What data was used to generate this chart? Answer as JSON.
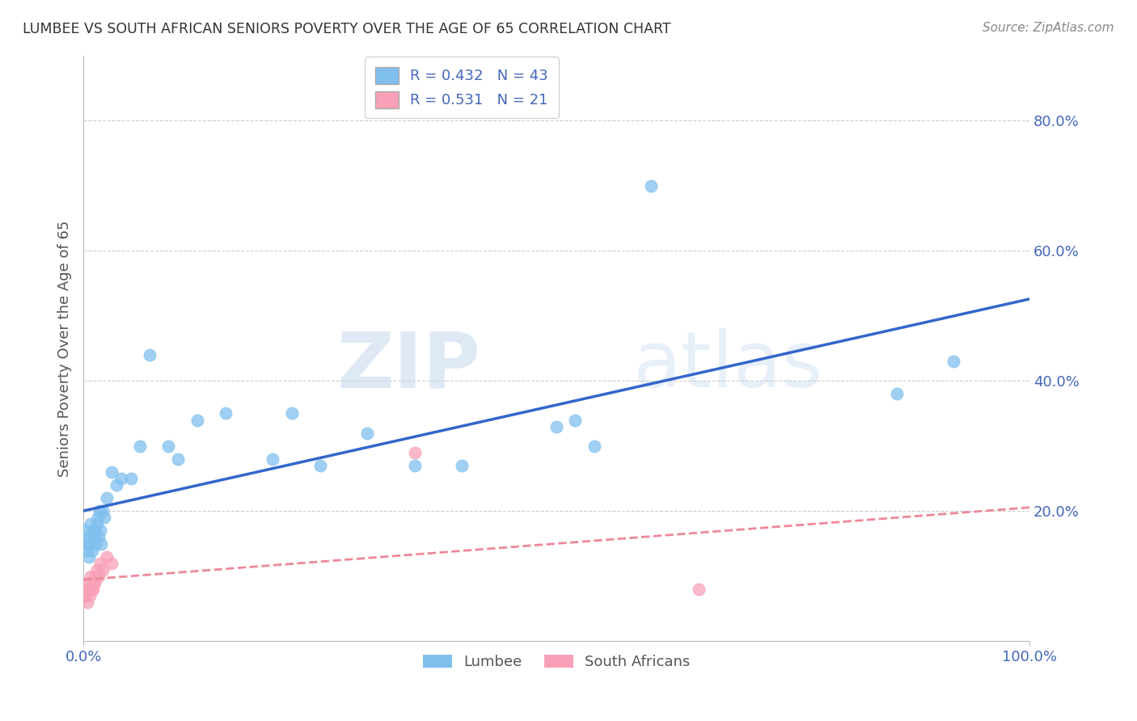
{
  "title": "LUMBEE VS SOUTH AFRICAN SENIORS POVERTY OVER THE AGE OF 65 CORRELATION CHART",
  "source": "Source: ZipAtlas.com",
  "ylabel": "Seniors Poverty Over the Age of 65",
  "xlim": [
    0.0,
    1.0
  ],
  "ylim": [
    0.0,
    0.9
  ],
  "xticks": [
    0.0,
    1.0
  ],
  "xticklabels": [
    "0.0%",
    "100.0%"
  ],
  "yticks": [
    0.2,
    0.4,
    0.6,
    0.8
  ],
  "yticklabels": [
    "20.0%",
    "40.0%",
    "60.0%",
    "80.0%"
  ],
  "lumbee_color": "#7fbfee",
  "sa_color": "#f8a0b8",
  "lumbee_line_color": "#3366cc",
  "sa_line_color": "#ee8899",
  "lumbee_R": 0.432,
  "lumbee_N": 43,
  "sa_R": 0.531,
  "sa_N": 21,
  "lumbee_x": [
    0.002,
    0.003,
    0.004,
    0.005,
    0.006,
    0.007,
    0.008,
    0.009,
    0.01,
    0.011,
    0.012,
    0.013,
    0.014,
    0.015,
    0.016,
    0.017,
    0.018,
    0.019,
    0.02,
    0.022,
    0.025,
    0.03,
    0.035,
    0.04,
    0.05,
    0.06,
    0.07,
    0.09,
    0.1,
    0.12,
    0.15,
    0.2,
    0.22,
    0.25,
    0.3,
    0.35,
    0.4,
    0.5,
    0.52,
    0.54,
    0.6,
    0.86,
    0.92
  ],
  "lumbee_y": [
    0.17,
    0.15,
    0.14,
    0.16,
    0.13,
    0.15,
    0.18,
    0.14,
    0.16,
    0.17,
    0.17,
    0.15,
    0.18,
    0.19,
    0.16,
    0.2,
    0.17,
    0.15,
    0.2,
    0.19,
    0.22,
    0.26,
    0.24,
    0.25,
    0.25,
    0.3,
    0.44,
    0.3,
    0.28,
    0.34,
    0.35,
    0.28,
    0.35,
    0.27,
    0.32,
    0.27,
    0.27,
    0.33,
    0.34,
    0.3,
    0.7,
    0.38,
    0.43
  ],
  "sa_x": [
    0.001,
    0.002,
    0.003,
    0.004,
    0.005,
    0.006,
    0.007,
    0.008,
    0.009,
    0.01,
    0.011,
    0.012,
    0.013,
    0.014,
    0.016,
    0.018,
    0.02,
    0.025,
    0.03,
    0.35,
    0.65
  ],
  "sa_y": [
    0.07,
    0.07,
    0.08,
    0.06,
    0.09,
    0.08,
    0.07,
    0.1,
    0.08,
    0.08,
    0.09,
    0.09,
    0.1,
    0.11,
    0.1,
    0.12,
    0.11,
    0.13,
    0.12,
    0.29,
    0.08
  ],
  "watermark_zip": "ZIP",
  "watermark_atlas": "atlas",
  "background_color": "#ffffff",
  "grid_color": "#cccccc",
  "title_color": "#333333",
  "axis_label_color": "#555555",
  "tick_color": "#4466bb",
  "legend_text_color": "#333333"
}
